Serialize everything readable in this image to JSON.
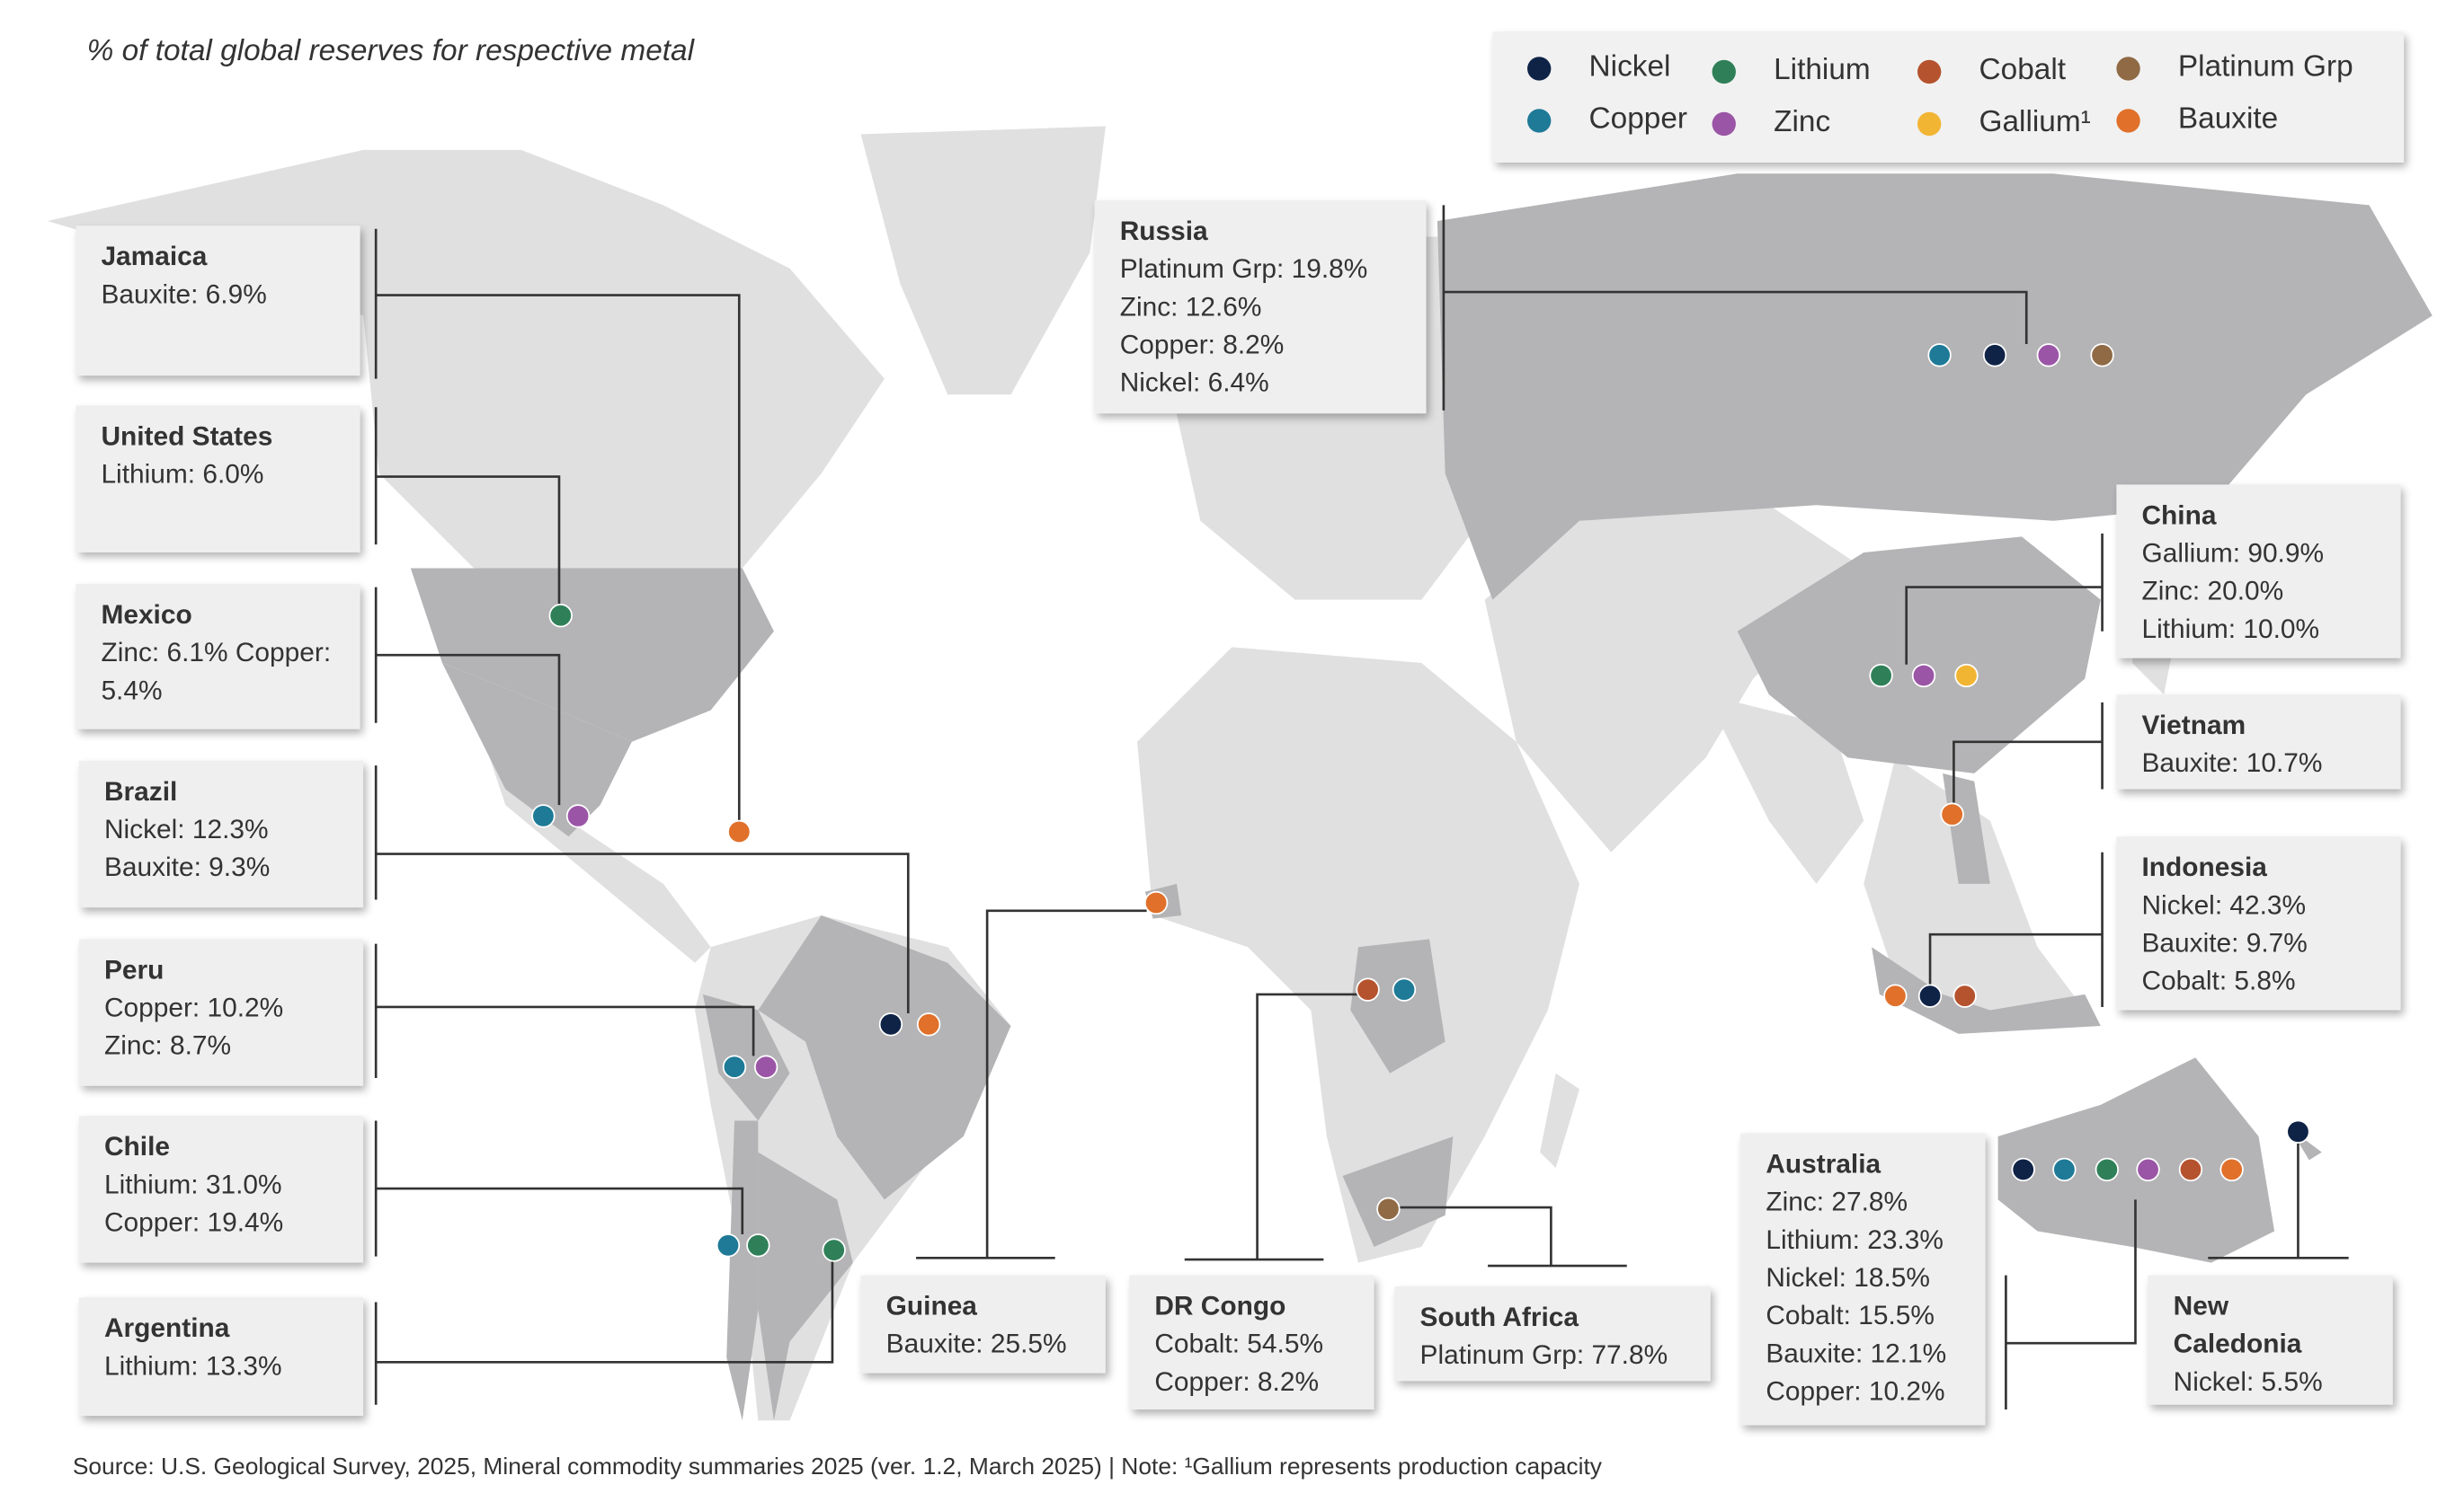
{
  "title": "% of total global reserves for respective metal",
  "source": "Source: U.S. Geological Survey, 2025, Mineral commodity summaries 2025 (ver. 1.2, March 2025) | Note: ¹Gallium represents production capacity",
  "legend": [
    {
      "key": "nickel",
      "label": "Nickel",
      "color": "#0f2347"
    },
    {
      "key": "lithium",
      "label": "Lithium",
      "color": "#2f8059"
    },
    {
      "key": "cobalt",
      "label": "Cobalt",
      "color": "#b5532e"
    },
    {
      "key": "platinum",
      "label": "Platinum Grp",
      "color": "#8f6a45"
    },
    {
      "key": "copper",
      "label": "Copper",
      "color": "#1e7a97"
    },
    {
      "key": "zinc",
      "label": "Zinc",
      "color": "#9b55a6"
    },
    {
      "key": "gallium",
      "label": "Gallium¹",
      "color": "#f2b533"
    },
    {
      "key": "bauxite",
      "label": "Bauxite",
      "color": "#e0702a"
    }
  ],
  "countries": [
    {
      "id": "jamaica",
      "name": "Jamaica",
      "lines": [
        "Bauxite: 6.9%"
      ],
      "metals": [
        "bauxite"
      ]
    },
    {
      "id": "us",
      "name": "United States",
      "lines": [
        "Lithium: 6.0%"
      ],
      "metals": [
        "lithium"
      ]
    },
    {
      "id": "mexico",
      "name": "Mexico",
      "lines": [
        "Zinc: 6.1% Copper:",
        "5.4%"
      ],
      "metals": [
        "copper",
        "zinc"
      ]
    },
    {
      "id": "brazil",
      "name": "Brazil",
      "lines": [
        "Nickel: 12.3%",
        "Bauxite: 9.3%"
      ],
      "metals": [
        "nickel",
        "bauxite"
      ]
    },
    {
      "id": "peru",
      "name": "Peru",
      "lines": [
        "Copper: 10.2%",
        "Zinc: 8.7%"
      ],
      "metals": [
        "copper",
        "zinc"
      ]
    },
    {
      "id": "chile",
      "name": "Chile",
      "lines": [
        "Lithium: 31.0%",
        "Copper: 19.4%"
      ],
      "metals": [
        "copper",
        "lithium"
      ]
    },
    {
      "id": "argentina",
      "name": "Argentina",
      "lines": [
        "Lithium: 13.3%"
      ],
      "metals": [
        "lithium"
      ]
    },
    {
      "id": "guinea",
      "name": "Guinea",
      "lines": [
        "Bauxite: 25.5%"
      ],
      "metals": [
        "bauxite"
      ]
    },
    {
      "id": "drc",
      "name": "DR Congo",
      "lines": [
        "Cobalt: 54.5%",
        "Copper: 8.2%"
      ],
      "metals": [
        "cobalt",
        "copper"
      ]
    },
    {
      "id": "southafrica",
      "name": "South Africa",
      "lines": [
        "Platinum Grp: 77.8%"
      ],
      "metals": [
        "platinum"
      ]
    },
    {
      "id": "russia",
      "name": "Russia",
      "lines": [
        "Platinum Grp: 19.8%",
        "Zinc: 12.6%",
        "Copper: 8.2%",
        "Nickel: 6.4%"
      ],
      "metals": [
        "copper",
        "nickel",
        "zinc",
        "platinum"
      ]
    },
    {
      "id": "china",
      "name": "China",
      "lines": [
        "Gallium: 90.9%",
        "Zinc: 20.0%",
        "Lithium: 10.0%"
      ],
      "metals": [
        "lithium",
        "zinc",
        "gallium"
      ]
    },
    {
      "id": "vietnam",
      "name": "Vietnam",
      "lines": [
        "Bauxite: 10.7%"
      ],
      "metals": [
        "bauxite"
      ]
    },
    {
      "id": "indonesia",
      "name": "Indonesia",
      "lines": [
        "Nickel: 42.3%",
        "Bauxite: 9.7%",
        "Cobalt: 5.8%"
      ],
      "metals": [
        "bauxite",
        "nickel",
        "cobalt"
      ]
    },
    {
      "id": "australia",
      "name": "Australia",
      "lines": [
        "Zinc: 27.8%",
        "Lithium: 23.3%",
        "Nickel: 18.5%",
        "Cobalt: 15.5%",
        "Bauxite: 12.1%",
        "Copper: 10.2%"
      ],
      "metals": [
        "nickel",
        "copper",
        "lithium",
        "zinc",
        "cobalt",
        "bauxite"
      ]
    },
    {
      "id": "newcaledonia",
      "name": "New\nCaledonia",
      "lines": [
        "Nickel: 5.5%"
      ],
      "metals": [
        "nickel"
      ]
    }
  ]
}
